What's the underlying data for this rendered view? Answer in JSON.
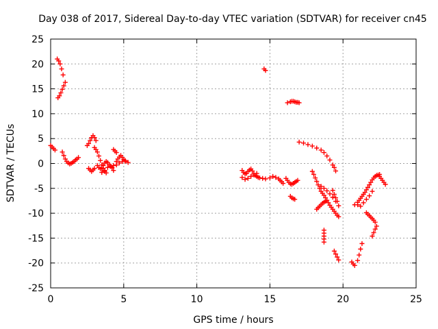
{
  "chart_data": {
    "type": "scatter",
    "title": "Day 038 of 2017, Sidereal Day-to-day VTEC variation (SDTVAR) for receiver cn45",
    "xlabel": "GPS time / hours",
    "ylabel": "SDTVAR / TECUs",
    "xlim": [
      0,
      25
    ],
    "ylim": [
      -25,
      25
    ],
    "xticks": [
      "0",
      "5",
      "10",
      "15",
      "20",
      "25"
    ],
    "yticks": [
      "25",
      "20",
      "15",
      "10",
      "5",
      "0",
      "-5",
      "-10",
      "-15",
      "-20",
      "-25"
    ],
    "grid": true,
    "marker": "+",
    "color": "#ff0000",
    "tracks": [
      {
        "x": [
          0.45,
          0.55,
          0.65,
          0.75,
          0.85
        ],
        "y": [
          21,
          20.6,
          20.0,
          19.0,
          17.8
        ]
      },
      {
        "x": [
          0.5,
          0.6,
          0.7,
          0.8,
          0.9,
          1.0
        ],
        "y": [
          13.2,
          13.6,
          14.2,
          14.9,
          15.6,
          16.3
        ]
      },
      {
        "x": [
          0.0,
          0.1,
          0.2,
          0.3
        ],
        "y": [
          3.6,
          3.3,
          3.0,
          2.7
        ]
      },
      {
        "x": [
          0.8,
          0.9,
          1.0,
          1.1,
          1.2,
          1.3,
          1.4,
          1.5,
          1.6,
          1.7,
          1.8,
          1.9
        ],
        "y": [
          2.3,
          1.6,
          0.9,
          0.4,
          0.1,
          -0.1,
          0.0,
          0.2,
          0.4,
          0.7,
          0.9,
          1.2
        ]
      },
      {
        "x": [
          2.6,
          2.7,
          2.8,
          2.9,
          3.0
        ],
        "y": [
          -1.0,
          -1.3,
          -1.6,
          -1.3,
          -1.0
        ]
      },
      {
        "x": [
          2.5,
          2.6,
          2.7,
          2.8,
          2.9,
          3.0,
          3.1
        ],
        "y": [
          3.6,
          4.0,
          4.6,
          5.2,
          5.6,
          5.2,
          4.6
        ]
      },
      {
        "x": [
          3.0,
          3.1,
          3.2,
          3.3,
          3.4,
          3.5,
          3.6,
          3.7,
          3.8
        ],
        "y": [
          3.2,
          2.8,
          2.3,
          1.5,
          0.6,
          -0.3,
          -1.0,
          -1.6,
          -1.9
        ]
      },
      {
        "x": [
          3.2,
          3.3,
          3.4,
          3.5,
          3.6,
          3.7,
          3.8,
          3.9,
          4.0,
          4.1,
          4.2,
          4.3
        ],
        "y": [
          -0.4,
          -0.8,
          -1.1,
          -0.9,
          -0.4,
          0.1,
          0.4,
          0.2,
          -0.2,
          -0.6,
          -0.8,
          -0.4
        ]
      },
      {
        "x": [
          3.5,
          3.7,
          3.9,
          4.1,
          4.2,
          4.3
        ],
        "y": [
          -1.8,
          -1.4,
          -0.8,
          -0.5,
          -0.9,
          -1.4
        ]
      },
      {
        "x": [
          4.3,
          4.4,
          4.5
        ],
        "y": [
          2.8,
          2.5,
          2.2
        ]
      },
      {
        "x": [
          4.5,
          4.6,
          4.7,
          4.8,
          4.9,
          5.0,
          5.1
        ],
        "y": [
          0.4,
          0.9,
          1.3,
          1.6,
          1.2,
          0.8,
          0.4
        ]
      },
      {
        "x": [
          4.5,
          4.7,
          4.9,
          5.1,
          5.3
        ],
        "y": [
          -0.3,
          0.1,
          0.4,
          0.6,
          0.2
        ]
      },
      {
        "x": [
          13.1,
          13.2,
          13.3,
          13.4,
          13.5,
          13.6,
          13.7,
          13.8,
          13.9,
          14.0,
          14.1,
          14.2,
          14.3,
          14.5,
          14.7
        ],
        "y": [
          -1.4,
          -1.8,
          -2.1,
          -2.0,
          -1.6,
          -1.3,
          -1.1,
          -1.5,
          -2.0,
          -2.4,
          -2.6,
          -2.8,
          -2.9,
          -3.0,
          -3.1
        ]
      },
      {
        "x": [
          13.1,
          13.3,
          13.5,
          13.7,
          13.9,
          14.1
        ],
        "y": [
          -2.8,
          -3.2,
          -3.0,
          -2.6,
          -2.3,
          -2.0
        ]
      },
      {
        "x": [
          14.6,
          14.7
        ],
        "y": [
          19.0,
          18.7
        ]
      },
      {
        "x": [
          15.0,
          15.2,
          15.4,
          15.6,
          15.7,
          15.8,
          15.9
        ],
        "y": [
          -2.9,
          -2.6,
          -2.8,
          -3.1,
          -3.4,
          -3.7,
          -4.0
        ]
      },
      {
        "x": [
          16.1,
          16.2,
          16.3,
          16.4,
          16.5,
          16.6,
          16.7,
          16.8,
          16.9
        ],
        "y": [
          -3.0,
          -3.4,
          -3.8,
          -4.1,
          -4.2,
          -4.0,
          -3.8,
          -3.6,
          -3.4
        ]
      },
      {
        "x": [
          16.2,
          16.4,
          16.5,
          16.6,
          16.7,
          16.8,
          16.9,
          17.0
        ],
        "y": [
          12.2,
          12.4,
          12.5,
          12.5,
          12.4,
          12.3,
          12.3,
          12.2
        ]
      },
      {
        "x": [
          16.4,
          16.5,
          16.6,
          16.7
        ],
        "y": [
          -6.6,
          -6.9,
          -7.1,
          -7.2
        ]
      },
      {
        "x": [
          17.0,
          17.3,
          17.6,
          17.9,
          18.2,
          18.5,
          18.7,
          18.9,
          19.1,
          19.3,
          19.4,
          19.5
        ],
        "y": [
          4.3,
          4.1,
          3.8,
          3.5,
          3.1,
          2.7,
          2.2,
          1.5,
          0.7,
          -0.3,
          -0.8,
          -1.5
        ]
      },
      {
        "x": [
          17.9,
          18.0,
          18.1,
          18.2,
          18.3,
          18.4,
          18.5,
          18.6,
          18.7,
          18.8,
          18.9,
          19.0,
          19.1,
          19.2,
          19.3,
          19.4,
          19.5,
          19.6,
          19.7
        ],
        "y": [
          -1.6,
          -2.2,
          -2.9,
          -3.6,
          -4.3,
          -5.0,
          -5.6,
          -6.0,
          -6.4,
          -6.9,
          -7.4,
          -7.9,
          -8.4,
          -8.8,
          -9.2,
          -9.6,
          -10.0,
          -10.4,
          -10.7
        ]
      },
      {
        "x": [
          18.2,
          18.3,
          18.4,
          18.5,
          18.6,
          18.7,
          18.8
        ],
        "y": [
          -9.2,
          -8.9,
          -8.6,
          -8.3,
          -8.0,
          -7.8,
          -7.6
        ]
      },
      {
        "x": [
          18.5,
          18.7,
          18.9,
          19.1,
          19.3,
          19.5
        ],
        "y": [
          -4.6,
          -5.0,
          -5.5,
          -6.1,
          -6.8,
          -7.6
        ]
      },
      {
        "x": [
          18.7,
          18.7,
          18.7,
          18.7,
          18.7
        ],
        "y": [
          -13.4,
          -14.0,
          -14.6,
          -15.2,
          -15.8
        ]
      },
      {
        "x": [
          19.3,
          19.4,
          19.5,
          19.6,
          19.7
        ],
        "y": [
          -5.4,
          -6.2,
          -6.9,
          -7.6,
          -8.5
        ]
      },
      {
        "x": [
          19.4,
          19.5,
          19.6,
          19.7
        ],
        "y": [
          -17.6,
          -18.2,
          -18.8,
          -19.4
        ]
      },
      {
        "x": [
          20.6,
          20.7,
          20.8
        ],
        "y": [
          -19.8,
          -20.2,
          -20.5
        ]
      },
      {
        "x": [
          20.8,
          21.0
        ],
        "y": [
          -8.3,
          -8.3
        ]
      },
      {
        "x": [
          21.0,
          21.1,
          21.2,
          21.3
        ],
        "y": [
          -19.5,
          -18.4,
          -17.2,
          -16.1
        ]
      },
      {
        "x": [
          21.0,
          21.1,
          21.2,
          21.3,
          21.4,
          21.5,
          21.6,
          21.7,
          21.8,
          21.9,
          22.0,
          22.1,
          22.2,
          22.3,
          22.4,
          22.5
        ],
        "y": [
          -7.8,
          -7.4,
          -7.0,
          -6.6,
          -6.2,
          -5.8,
          -5.3,
          -4.8,
          -4.3,
          -3.8,
          -3.3,
          -2.9,
          -2.6,
          -2.4,
          -2.3,
          -2.2
        ]
      },
      {
        "x": [
          21.2,
          21.4,
          21.6,
          21.8,
          22.0
        ],
        "y": [
          -8.6,
          -7.9,
          -7.2,
          -6.5,
          -5.6
        ]
      },
      {
        "x": [
          21.6,
          21.7,
          21.8,
          21.9,
          22.0,
          22.1,
          22.2
        ],
        "y": [
          -9.9,
          -10.2,
          -10.5,
          -10.8,
          -11.1,
          -11.4,
          -11.8
        ]
      },
      {
        "x": [
          22.0,
          22.1,
          22.2,
          22.3
        ],
        "y": [
          -14.6,
          -13.9,
          -13.2,
          -12.6
        ]
      },
      {
        "x": [
          22.5,
          22.6,
          22.7,
          22.8,
          22.9
        ],
        "y": [
          -2.6,
          -3.0,
          -3.4,
          -3.8,
          -4.2
        ]
      }
    ]
  }
}
